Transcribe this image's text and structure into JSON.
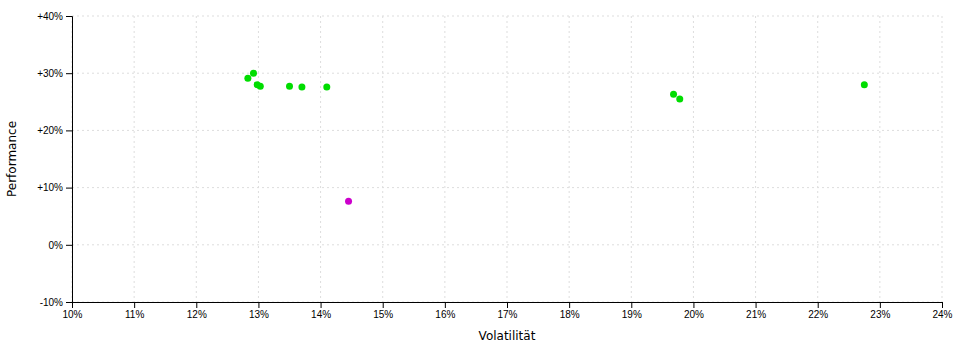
{
  "chart_data": {
    "type": "scatter",
    "x_label": "Volatilität",
    "y_label": "Performance",
    "xlim": [
      0.1,
      0.24
    ],
    "ylim": [
      -0.1,
      0.4
    ],
    "xticks": [
      {
        "value": 0.1,
        "label": "10%"
      },
      {
        "value": 0.11,
        "label": "11%"
      },
      {
        "value": 0.12,
        "label": "12%"
      },
      {
        "value": 0.13,
        "label": "13%"
      },
      {
        "value": 0.14,
        "label": "14%"
      },
      {
        "value": 0.15,
        "label": "15%"
      },
      {
        "value": 0.16,
        "label": "16%"
      },
      {
        "value": 0.17,
        "label": "17%"
      },
      {
        "value": 0.18,
        "label": "18%"
      },
      {
        "value": 0.19,
        "label": "19%"
      },
      {
        "value": 0.2,
        "label": "20%"
      },
      {
        "value": 0.21,
        "label": "21%"
      },
      {
        "value": 0.22,
        "label": "22%"
      },
      {
        "value": 0.23,
        "label": "23%"
      },
      {
        "value": 0.24,
        "label": "24%"
      }
    ],
    "yticks": [
      {
        "value": -0.1,
        "label": "-10%"
      },
      {
        "value": 0.0,
        "label": "0%"
      },
      {
        "value": 0.1,
        "label": "+10%"
      },
      {
        "value": 0.2,
        "label": "+20%"
      },
      {
        "value": 0.3,
        "label": "+30%"
      },
      {
        "value": 0.4,
        "label": "+40%"
      }
    ],
    "grid": true,
    "series": [
      {
        "color": "#00dd00",
        "x": [
          0.1292,
          0.1283,
          0.1298,
          0.1303,
          0.135,
          0.137,
          0.141,
          0.1968,
          0.1978,
          0.2275
        ],
        "values": [
          0.3,
          0.291,
          0.28,
          0.277,
          0.277,
          0.276,
          0.276,
          0.263,
          0.255,
          0.28
        ]
      },
      {
        "color": "#cc00cc",
        "x": [
          0.1445
        ],
        "values": [
          0.076
        ]
      }
    ]
  }
}
